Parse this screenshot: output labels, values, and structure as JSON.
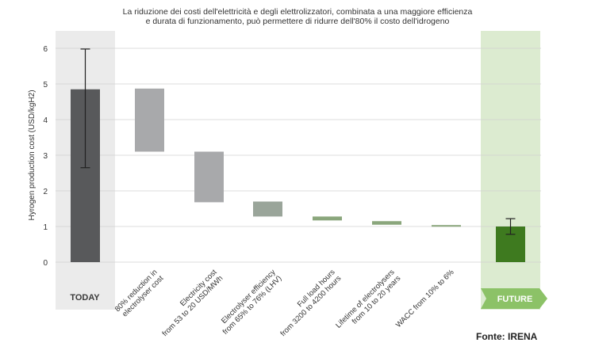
{
  "title_lines": [
    "La riduzione dei costi dell'elettricità e degli elettrolizzatori, combinata a una maggiore efficienza",
    "e durata di funzionamento, può permettere di ridurre dell'80% il costo dell'idrogeno"
  ],
  "source": "Fonte: IRENA",
  "colors": {
    "today_bar": "#58595b",
    "today_panel": "#ebebeb",
    "future_bar": "#3e7a1f",
    "future_panel": "#dcebd0",
    "future_label_bg": "#8cc267",
    "gray_step": "#a8a9ab",
    "gray_green_step": "#9aa59a",
    "green_step": "#8aa67c",
    "grid": "#d0d0d0"
  },
  "chart_data": {
    "type": "bar",
    "subtype": "waterfall",
    "ylabel": "Hyrogen production cost (USD/kgH2)",
    "ylim": [
      0,
      6
    ],
    "yticks": [
      "0",
      "1",
      "2",
      "3",
      "4",
      "5",
      "6"
    ],
    "grid": true,
    "today": {
      "label": "TODAY",
      "value": 4.85,
      "error_low": 2.65,
      "error_high": 5.98
    },
    "future": {
      "label": "FUTURE",
      "value": 1.0,
      "error_low": 0.78,
      "error_high": 1.22
    },
    "steps": [
      {
        "label_lines": [
          "80% reduction in",
          "electrolyser cost"
        ],
        "from": 4.87,
        "to": 3.1
      },
      {
        "label_lines": [
          "Electricity cost",
          "from 53 to 20 USD/MWh"
        ],
        "from": 3.1,
        "to": 1.68
      },
      {
        "label_lines": [
          "Electrolyser efficiency",
          "from 65% to 76% (LHV)"
        ],
        "from": 1.7,
        "to": 1.28
      },
      {
        "label_lines": [
          "Full load hours",
          "from 3200 to 4200 hours"
        ],
        "from": 1.28,
        "to": 1.17
      },
      {
        "label_lines": [
          "Lifetime of electrolysers",
          "from 10 to 20 years"
        ],
        "from": 1.15,
        "to": 1.05
      },
      {
        "label_lines": [
          "WACC from 10% to 6%"
        ],
        "from": 1.04,
        "to": 1.0
      }
    ]
  }
}
